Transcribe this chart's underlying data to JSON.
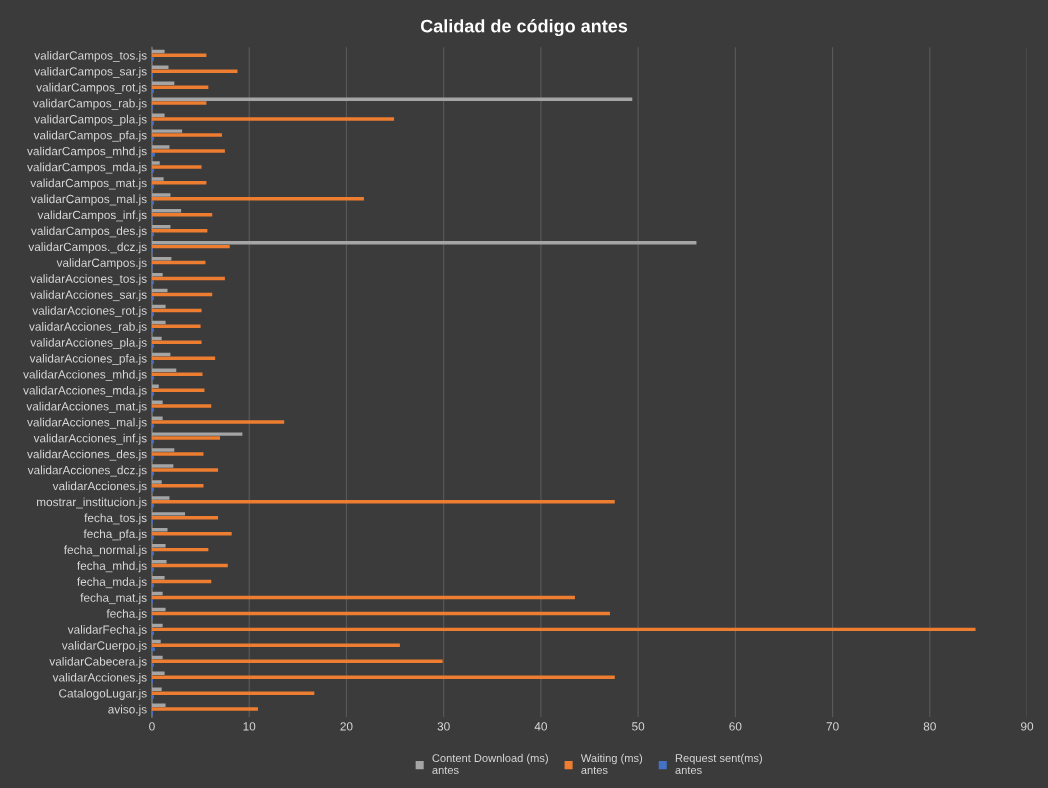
{
  "chart_data": {
    "type": "bar",
    "orientation": "horizontal",
    "title": "Calidad de código antes",
    "categories": [
      "validarCampos_tos.js",
      "validarCampos_sar.js",
      "validarCampos_rot.js",
      "validarCampos_rab.js",
      "validarCampos_pla.js",
      "validarCampos_pfa.js",
      "validarCampos_mhd.js",
      "validarCampos_mda.js",
      "validarCampos_mat.js",
      "validarCampos_mal.js",
      "validarCampos_inf.js",
      "validarCampos_des.js",
      "validarCampos._dcz.js",
      "validarCampos.js",
      "validarAcciones_tos.js",
      "validarAcciones_sar.js",
      "validarAcciones_rot.js",
      "validarAcciones_rab.js",
      "validarAcciones_pla.js",
      "validarAcciones_pfa.js",
      "validarAcciones_mhd.js",
      "validarAcciones_mda.js",
      "validarAcciones_mat.js",
      "validarAcciones_mal.js",
      "validarAcciones_inf.js",
      "validarAcciones_des.js",
      "validarAcciones_dcz.js",
      "validarAcciones.js",
      "mostrar_institucion.js",
      "fecha_tos.js",
      "fecha_pfa.js",
      "fecha_normal.js",
      "fecha_mhd.js",
      "fecha_mda.js",
      "fecha_mat.js",
      "fecha.js",
      "validarFecha.js",
      "validarCuerpo.js",
      "validarCabecera.js",
      "validarAcciones.js",
      "CatalogoLugar.js",
      "aviso.js"
    ],
    "series": [
      {
        "name": "Content Download (ms)\nantes",
        "color": "#a5a5a5",
        "values": [
          1.3,
          1.7,
          2.3,
          49.4,
          1.3,
          3.1,
          1.8,
          0.8,
          1.2,
          1.9,
          3.0,
          1.9,
          56.0,
          2.0,
          1.1,
          1.6,
          1.4,
          1.4,
          1.0,
          1.9,
          2.5,
          0.7,
          1.1,
          1.1,
          9.3,
          2.3,
          2.2,
          1.0,
          1.8,
          3.4,
          1.6,
          1.4,
          1.5,
          1.3,
          1.1,
          1.4,
          1.1,
          0.9,
          1.1,
          1.3,
          1.0,
          1.4
        ]
      },
      {
        "name": "Waiting (ms)\nantes",
        "color": "#ed7d31",
        "values": [
          5.6,
          8.8,
          5.8,
          5.6,
          24.9,
          7.2,
          7.5,
          5.1,
          5.6,
          21.8,
          6.2,
          5.7,
          8.0,
          5.5,
          7.5,
          6.2,
          5.1,
          5.0,
          5.1,
          6.5,
          5.2,
          5.4,
          6.1,
          13.6,
          7.0,
          5.3,
          6.8,
          5.3,
          47.6,
          6.8,
          8.2,
          5.8,
          7.8,
          6.1,
          43.5,
          47.1,
          84.7,
          25.5,
          29.9,
          47.6,
          16.7,
          10.9
        ]
      },
      {
        "name": "Request sent(ms)\nantes",
        "color": "#4472c4",
        "values": [
          0.2,
          0.1,
          0.2,
          0.1,
          0.2,
          0.2,
          0.3,
          0.2,
          0.2,
          0.2,
          0.1,
          0.2,
          0.1,
          0.1,
          0.2,
          0.2,
          0.2,
          0.2,
          0.2,
          0.2,
          0.2,
          0.2,
          0.2,
          0.2,
          0.2,
          0.2,
          0.2,
          0.2,
          0.2,
          0.1,
          0.2,
          0.2,
          0.2,
          0.2,
          0.1,
          0.1,
          0.2,
          0.3,
          0.2,
          0.1,
          0.2,
          0.1
        ]
      }
    ],
    "xlim": [
      0,
      90
    ],
    "xticks": [
      0,
      10,
      20,
      30,
      40,
      50,
      60,
      70,
      80,
      90
    ],
    "grid": "x",
    "legend": "bottom"
  }
}
